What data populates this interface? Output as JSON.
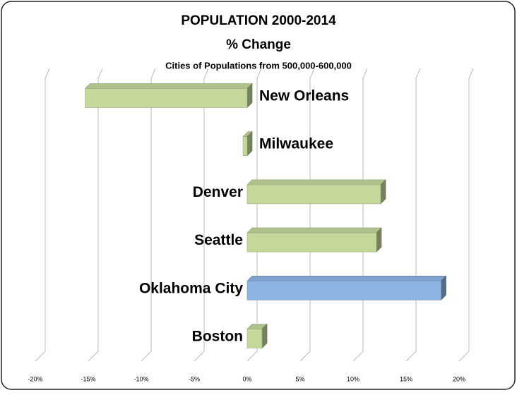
{
  "chart_data": {
    "type": "bar3d-horizontal",
    "title": "POPULATION 2000-2014",
    "subtitle": "% Change",
    "note": "Cities of Populations from 500,000-600,000",
    "categories": [
      "New Orleans",
      "Milwaukee",
      "Denver",
      "Seattle",
      "Oklahoma City",
      "Boston"
    ],
    "values": [
      -15.3,
      -0.4,
      12.6,
      12.2,
      18.3,
      1.4
    ],
    "colors": [
      "#c4d89b",
      "#c4d89b",
      "#c4d89b",
      "#c4d89b",
      "#8db4e2",
      "#c4d89b"
    ],
    "xlim": [
      -20,
      20
    ],
    "xticks": [
      {
        "value": -20,
        "label": "-20%"
      },
      {
        "value": -15,
        "label": "-15%"
      },
      {
        "value": -10,
        "label": "-10%"
      },
      {
        "value": -5,
        "label": "-5%"
      },
      {
        "value": 0,
        "label": "0%"
      },
      {
        "value": 5,
        "label": "5%"
      },
      {
        "value": 10,
        "label": "10%"
      },
      {
        "value": 15,
        "label": "15%"
      },
      {
        "value": 20,
        "label": "20%"
      }
    ],
    "grid": true
  }
}
